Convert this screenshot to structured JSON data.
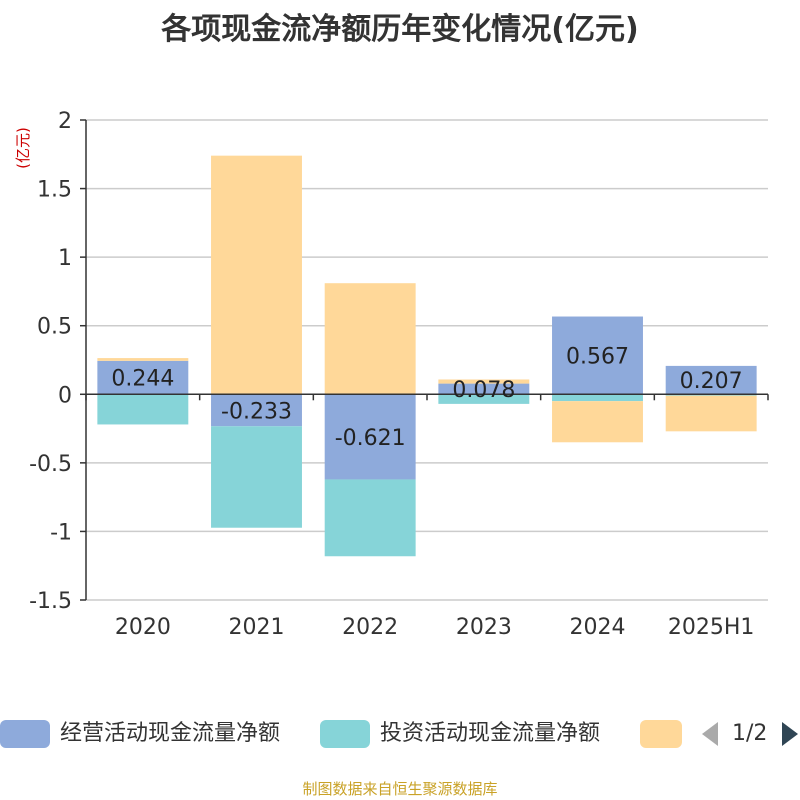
{
  "title": "各项现金流净额历年变化情况(亿元)",
  "source": "制图数据来自恒生聚源数据库",
  "legend": {
    "items": [
      {
        "label": "经营活动现金流量净额",
        "color": "#8eaadb"
      },
      {
        "label": "投资活动现金流量净额",
        "color": "#86d4d8"
      },
      {
        "label": "",
        "color": "#ffd899"
      }
    ],
    "page": "1/2"
  },
  "chart_data": {
    "type": "bar",
    "stacked": true,
    "title": "各项现金流净额历年变化情况(亿元)",
    "ylabel": "(亿元)",
    "xlabel": "",
    "categories": [
      "2020",
      "2021",
      "2022",
      "2023",
      "2024",
      "2025H1"
    ],
    "ylim": [
      -1.5,
      2
    ],
    "yticks": [
      2,
      1.5,
      1,
      0.5,
      0,
      -0.5,
      -1,
      -1.5
    ],
    "ytick_labels": [
      "2",
      "1.5",
      "1",
      "0.5",
      "0",
      "-0.5",
      "-1",
      "-1.5"
    ],
    "grid": true,
    "legend_position": "bottom",
    "series": [
      {
        "name": "经营活动现金流量净额",
        "color": "#8eaadb",
        "values": [
          0.244,
          -0.233,
          -0.621,
          0.078,
          0.567,
          0.207
        ],
        "labels": [
          "0.244",
          "-0.233",
          "-0.621",
          "0.078",
          "0.567",
          "0.207"
        ]
      },
      {
        "name": "投资活动现金流量净额",
        "color": "#86d4d8",
        "values": [
          -0.22,
          -0.74,
          -0.56,
          -0.07,
          -0.05,
          -0.01
        ]
      },
      {
        "color": "#ffd899",
        "values": [
          0.02,
          1.74,
          0.81,
          0.03,
          -0.3,
          -0.26
        ]
      }
    ]
  }
}
